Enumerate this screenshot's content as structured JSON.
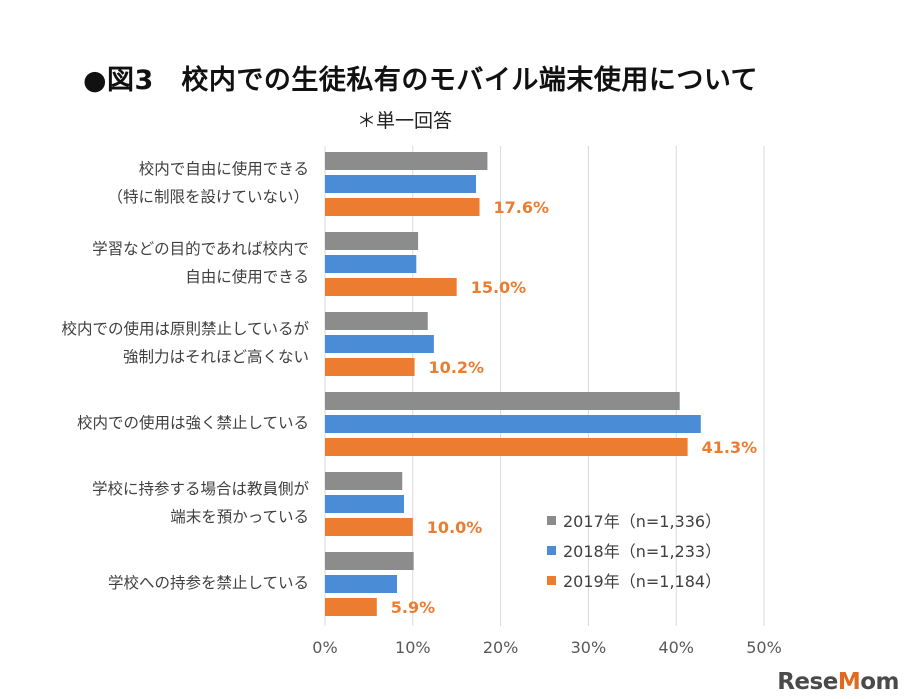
{
  "title": "●図3　校内での生徒私有のモバイル端末使用について",
  "subtitle": "＊単一回答",
  "logo": "ReseMom",
  "chart_data": {
    "type": "bar",
    "orientation": "horizontal",
    "categories": [
      [
        "校内で自由に使用できる",
        "（特に制限を設けていない）"
      ],
      [
        "学習などの目的であれば校内で",
        "自由に使用できる"
      ],
      [
        "校内での使用は原則禁止しているが",
        "強制力はそれほど高くない"
      ],
      [
        "校内での使用は強く禁止している"
      ],
      [
        "学校に持参する場合は教員側が",
        "端末を預かっている"
      ],
      [
        "学校への持参を禁止している"
      ]
    ],
    "series": [
      {
        "name": "2017年（n=1,336）",
        "color": "#8c8c8c",
        "values": [
          18.5,
          10.6,
          11.7,
          40.4,
          8.8,
          10.1
        ]
      },
      {
        "name": "2018年（n=1,233）",
        "color": "#4a8dd6",
        "values": [
          17.2,
          10.4,
          12.4,
          42.8,
          9.0,
          8.2
        ]
      },
      {
        "name": "2019年（n=1,184）",
        "color": "#ec7c30",
        "values": [
          17.6,
          15.0,
          10.2,
          41.3,
          10.0,
          5.9
        ]
      }
    ],
    "data_labels": [
      "17.6%",
      "15.0%",
      "10.2%",
      "41.3%",
      "10.0%",
      "5.9%"
    ],
    "data_label_color": "#ec7c30",
    "xlim": [
      0,
      50
    ],
    "x_ticks": [
      "0%",
      "10%",
      "20%",
      "30%",
      "40%",
      "50%"
    ],
    "grid": true,
    "legend_position": "bottom-right"
  }
}
